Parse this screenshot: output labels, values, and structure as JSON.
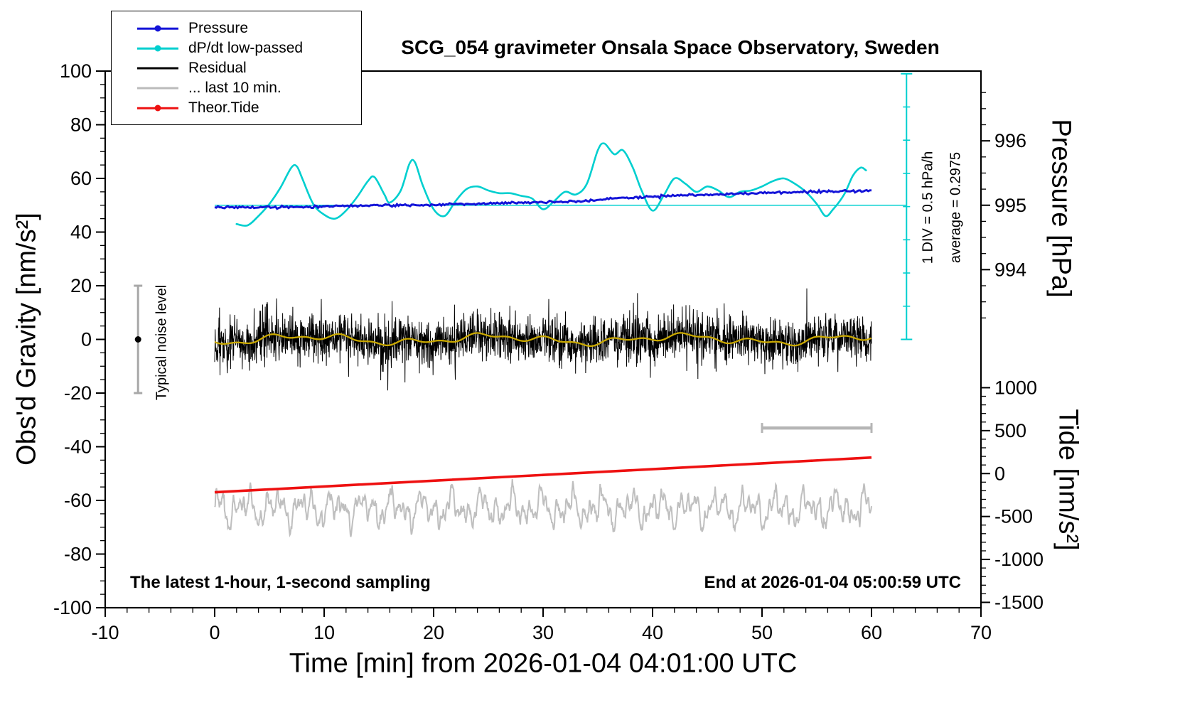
{
  "texts": {
    "title": "SCG_054 gravimeter Onsala Space Observatory, Sweden",
    "xlabel": "Time [min] from 2026-01-04 04:01:00 UTC",
    "ylabel_left": "Obs'd Gravity [nm/s²]",
    "ylabel_pressure": "Pressure [hPa]",
    "ylabel_tide": "Tide [nm/s²]",
    "note_sampling": "The latest 1-hour, 1-second sampling",
    "note_end": "End at 2026-01-04 05:00:59 UTC",
    "div_scale": "1 DIV = 0.5 hPa/h",
    "average": "average = 0.2975",
    "noise_label": "Typical noise level"
  },
  "legend": {
    "items": [
      {
        "label": "Pressure",
        "color": "#1414d8",
        "marker": true,
        "lw": 2.5
      },
      {
        "label": "dP/dt low-passed",
        "color": "#00cfcf",
        "marker": true,
        "lw": 2.5
      },
      {
        "label": "Residual",
        "color": "#000000",
        "marker": false,
        "lw": 3
      },
      {
        "label": "... last 10 min.",
        "color": "#bbbbbb",
        "marker": false,
        "lw": 3
      },
      {
        "label": "Theor.Tide",
        "color": "#ee1111",
        "marker": true,
        "lw": 2.5
      }
    ]
  },
  "axes": {
    "x": {
      "min": -10,
      "max": 70,
      "major": [
        -10,
        0,
        10,
        20,
        30,
        40,
        50,
        60,
        70
      ],
      "minor_step": 2
    },
    "gravity": {
      "min": -100,
      "max": 100,
      "major": [
        -100,
        -80,
        -60,
        -40,
        -20,
        0,
        20,
        40,
        60,
        80,
        100
      ],
      "minor_step": 5
    },
    "pressure": {
      "major": [
        996,
        995,
        994
      ],
      "minor_step": 0.25,
      "minor_from": 993.25,
      "minor_to": 996.75,
      "gravity_at_995": 50,
      "gravity_per_hpa": 24
    },
    "tide": {
      "major": [
        1000,
        500,
        0,
        -500,
        -1000,
        -1500
      ],
      "minor_step": 100,
      "minor_from": -1500,
      "minor_to": 1000,
      "gravity_at_zero": -50,
      "gravity_per_unit": 0.032
    },
    "dpdt": {
      "gravity_at_zero": 50,
      "gravity_per_unit": 25,
      "div_value": "1 DIV = 0.5 hPa/h"
    }
  },
  "annotations": {
    "noise_bar": {
      "x": -7,
      "y_from": -20,
      "y_to": 20,
      "dot_y": 0
    },
    "div_bar": {
      "x": 63.2,
      "g_from": 0,
      "g_to": 99,
      "tick_every": 12.375
    },
    "dpdt_baseline": {
      "g": 50,
      "x_from": 0,
      "x_to": 63.2
    },
    "last10_bar": {
      "x_from": 50,
      "x_to": 60,
      "g": -33
    }
  },
  "chart_data": {
    "type": "line",
    "title": "SCG_054 gravimeter Onsala Space Observatory, Sweden",
    "window": "latest 1-hour, 1-second sampling",
    "start_utc": "2026-01-04 04:01:00",
    "end_utc": "2026-01-04 05:00:59",
    "x_units": "minutes",
    "x_range": [
      -10,
      70
    ],
    "gravity_axis_range": [
      -100,
      100
    ],
    "dpdt_average_hpa_per_h": 0.2975,
    "series": [
      {
        "name": "Pressure",
        "axis": "pressure",
        "units": "hPa",
        "color": "#1414d8",
        "points": [
          [
            0,
            994.97
          ],
          [
            4,
            994.965
          ],
          [
            8,
            994.97
          ],
          [
            12,
            994.99
          ],
          [
            16,
            995.0
          ],
          [
            20,
            995.01
          ],
          [
            24,
            995.02
          ],
          [
            28,
            995.04
          ],
          [
            32,
            995.05
          ],
          [
            34,
            995.07
          ],
          [
            36,
            995.1
          ],
          [
            38,
            995.12
          ],
          [
            40,
            995.135
          ],
          [
            42,
            995.15
          ],
          [
            44,
            995.16
          ],
          [
            46,
            995.17
          ],
          [
            48,
            995.18
          ],
          [
            50,
            995.19
          ],
          [
            52,
            995.2
          ],
          [
            54,
            995.21
          ],
          [
            56,
            995.215
          ],
          [
            58,
            995.22
          ],
          [
            60,
            995.23
          ]
        ],
        "generator": {
          "seed": 3,
          "step_min": 0.15,
          "jitter_gravity": 0.22
        }
      },
      {
        "name": "dP/dt low-passed",
        "axis": "dpdt",
        "units": "hPa/h",
        "color": "#00cfcf",
        "points": [
          [
            2,
            -0.28
          ],
          [
            3,
            -0.3
          ],
          [
            4,
            -0.16
          ],
          [
            5,
            0.02
          ],
          [
            6,
            0.26
          ],
          [
            7,
            0.56
          ],
          [
            7.5,
            0.58
          ],
          [
            8,
            0.4
          ],
          [
            9,
            0.02
          ],
          [
            10,
            -0.14
          ],
          [
            11,
            -0.2
          ],
          [
            12,
            -0.08
          ],
          [
            13,
            0.12
          ],
          [
            14,
            0.36
          ],
          [
            14.6,
            0.42
          ],
          [
            15.5,
            0.16
          ],
          [
            16,
            0.04
          ],
          [
            17,
            0.22
          ],
          [
            17.8,
            0.62
          ],
          [
            18.3,
            0.64
          ],
          [
            19,
            0.3
          ],
          [
            20,
            -0.06
          ],
          [
            21,
            -0.16
          ],
          [
            22,
            0.06
          ],
          [
            23,
            0.24
          ],
          [
            24,
            0.28
          ],
          [
            25,
            0.22
          ],
          [
            26,
            0.18
          ],
          [
            27,
            0.18
          ],
          [
            28,
            0.14
          ],
          [
            29,
            0.1
          ],
          [
            30,
            -0.06
          ],
          [
            31,
            0.06
          ],
          [
            32,
            0.2
          ],
          [
            33,
            0.16
          ],
          [
            34,
            0.32
          ],
          [
            35,
            0.82
          ],
          [
            35.6,
            0.92
          ],
          [
            36.5,
            0.76
          ],
          [
            37.3,
            0.82
          ],
          [
            38.2,
            0.56
          ],
          [
            39,
            0.22
          ],
          [
            40,
            -0.08
          ],
          [
            41,
            0.14
          ],
          [
            42,
            0.4
          ],
          [
            43,
            0.32
          ],
          [
            44,
            0.2
          ],
          [
            45,
            0.28
          ],
          [
            46,
            0.22
          ],
          [
            47,
            0.12
          ],
          [
            48,
            0.2
          ],
          [
            49,
            0.22
          ],
          [
            50,
            0.28
          ],
          [
            51,
            0.36
          ],
          [
            52,
            0.4
          ],
          [
            53,
            0.32
          ],
          [
            54,
            0.2
          ],
          [
            55,
            0.02
          ],
          [
            55.8,
            -0.16
          ],
          [
            56.5,
            -0.06
          ],
          [
            57.5,
            0.16
          ],
          [
            58.3,
            0.44
          ],
          [
            59,
            0.56
          ],
          [
            59.5,
            0.52
          ]
        ]
      },
      {
        "name": "Residual",
        "axis": "gravity",
        "units": "nm/s²",
        "color": "#000000",
        "generator": {
          "seed": 20,
          "n": 2600,
          "x0": 0,
          "x1": 60,
          "white_std": 4.4,
          "spike_prob": 0.006,
          "spike_scale": 2.4,
          "slow_components": [
            [
              17,
              1.2
            ],
            [
              6.3,
              0.9
            ],
            [
              3.1,
              0.6
            ]
          ]
        }
      },
      {
        "name": "Residual low-passed",
        "axis": "gravity",
        "units": "nm/s²",
        "color": "#c9a800",
        "derived_from": "Residual",
        "note": "low-frequency component of residual"
      },
      {
        "name": "Residual last 10 min.",
        "axis": "gravity",
        "units": "display",
        "color": "#bfbfbf",
        "note": "displayed offset near -63 nm/s² on gravity axis",
        "generator": {
          "seed": 9,
          "n": 1400,
          "x0": 0,
          "x1": 60,
          "mean": -63,
          "white_std": 0.7,
          "components": [
            [
              2.7,
              3.2
            ],
            [
              1.4,
              2.8
            ],
            [
              0.8,
              2.3
            ],
            [
              0.5,
              1.7
            ],
            [
              0.31,
              1.1
            ]
          ]
        }
      },
      {
        "name": "Theor.Tide",
        "axis": "tide",
        "units": "nm/s²",
        "color": "#ee1111",
        "points": [
          [
            0,
            -218
          ],
          [
            10,
            -150
          ],
          [
            20,
            -83
          ],
          [
            30,
            -16
          ],
          [
            40,
            51
          ],
          [
            50,
            119
          ],
          [
            60,
            187
          ]
        ]
      }
    ]
  }
}
